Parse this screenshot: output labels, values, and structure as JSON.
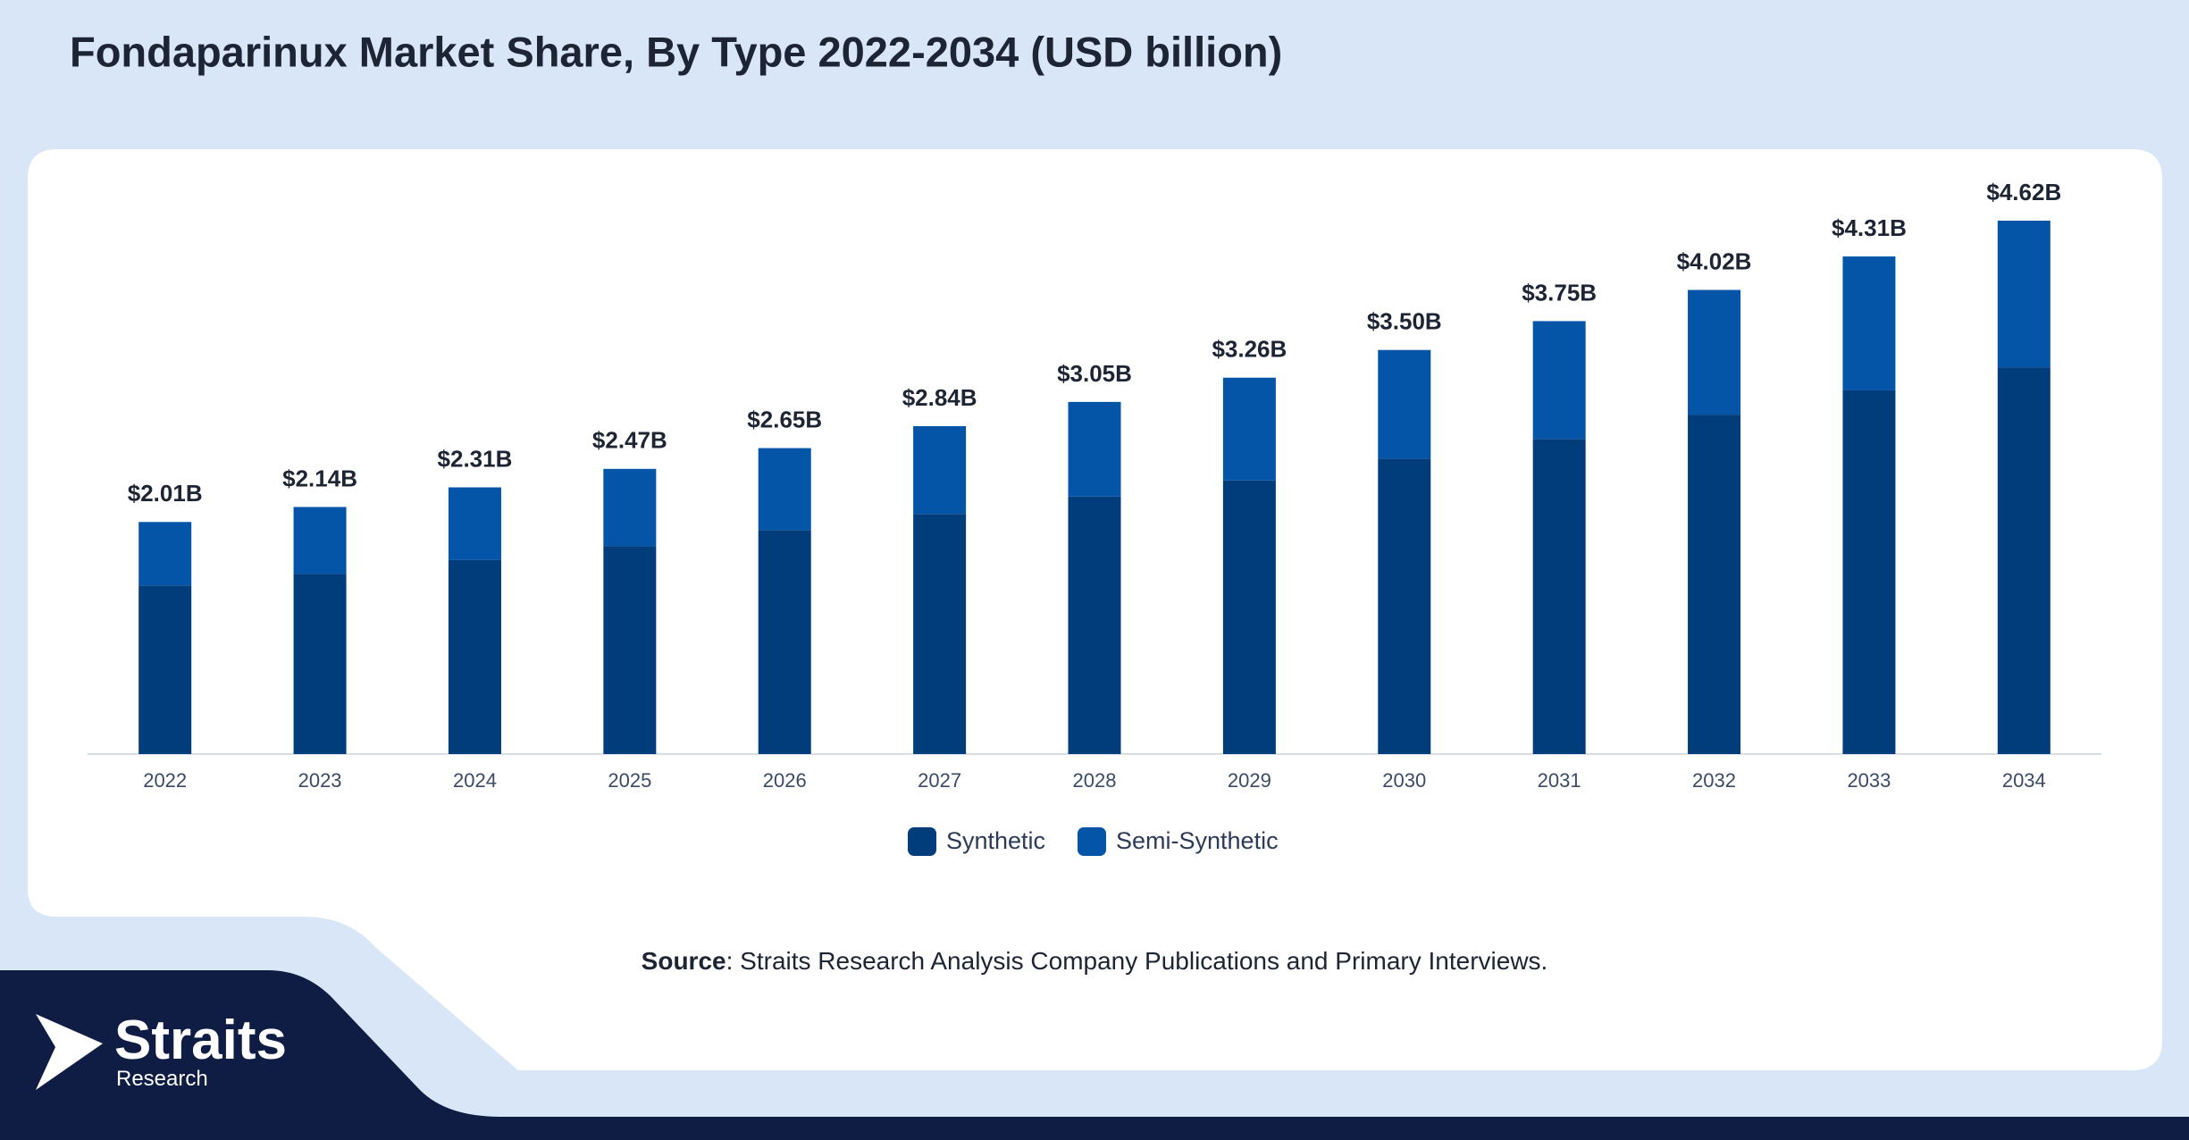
{
  "chart_data": {
    "type": "stacked_bar",
    "title": "Fondaparinux Market Share, By Type 2022-2034 (USD billion)",
    "categories": [
      "2022",
      "2023",
      "2024",
      "2025",
      "2026",
      "2027",
      "2028",
      "2029",
      "2030",
      "2031",
      "2032",
      "2033",
      "2034"
    ],
    "series": [
      {
        "name": "Synthetic",
        "color": "#023d7b",
        "values": [
          1.46,
          1.56,
          1.68,
          1.8,
          1.94,
          2.08,
          2.23,
          2.37,
          2.56,
          2.73,
          2.94,
          3.15,
          3.35
        ]
      },
      {
        "name": "Semi-Synthetic",
        "color": "#0454a8",
        "values": [
          0.55,
          0.58,
          0.63,
          0.67,
          0.71,
          0.76,
          0.82,
          0.89,
          0.94,
          1.02,
          1.08,
          1.16,
          1.27
        ]
      }
    ],
    "totals": {
      "values": [
        2.01,
        2.14,
        2.31,
        2.47,
        2.65,
        2.84,
        3.05,
        3.26,
        3.5,
        3.75,
        4.02,
        4.31,
        4.62
      ],
      "value_labels": [
        "$2.01B",
        "$2.14B",
        "$2.31B",
        "$2.47B",
        "$2.65B",
        "$2.84B",
        "$3.05B",
        "$3.26B",
        "$3.50B",
        "$3.75B",
        "$4.02B",
        "$4.31B",
        "$4.62B"
      ]
    },
    "legend": "bottom"
  },
  "source": {
    "label": "Source",
    "text": ": Straits Research Analysis Company Publications and Primary Interviews."
  },
  "logo": {
    "name": "Straits",
    "sub": "Research"
  }
}
